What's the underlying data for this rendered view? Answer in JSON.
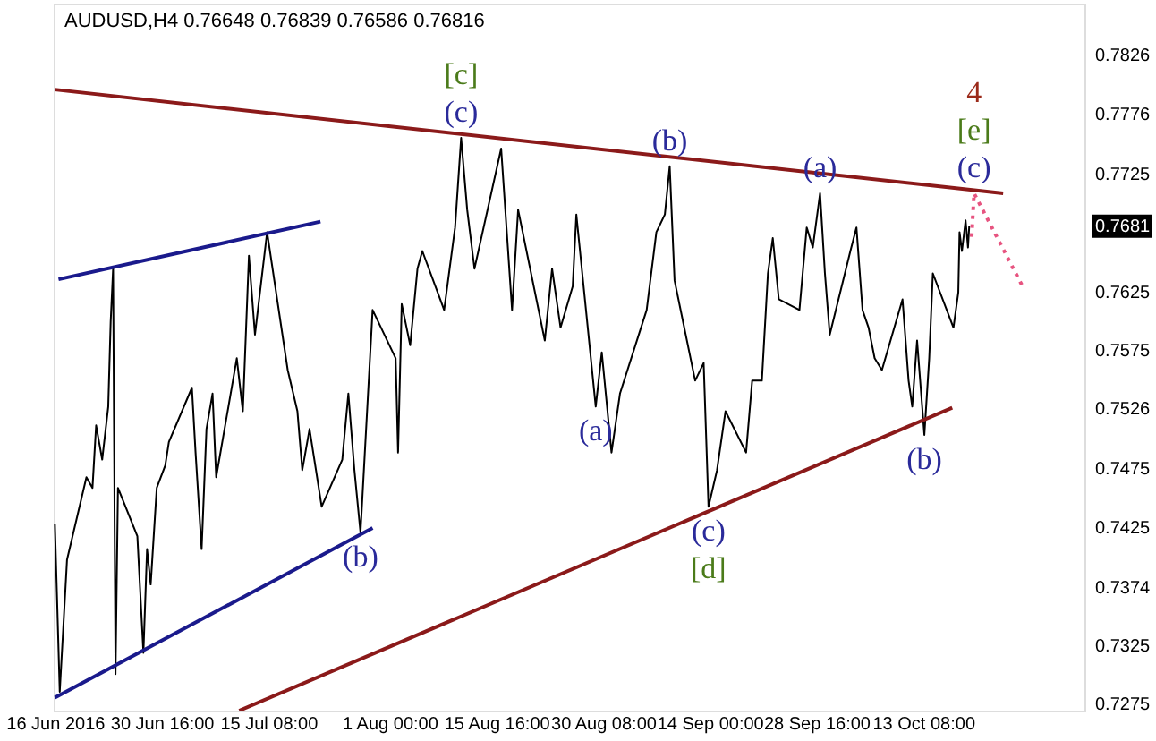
{
  "chart_data": {
    "type": "line",
    "title": "AUDUSD,H4  0.76648 0.76839 0.76586 0.76816",
    "xlim": [
      "2016-06-15T20:00",
      "2016-11-04T12:00"
    ],
    "ylim": [
      0.727,
      0.787
    ],
    "xticks": [
      {
        "value": "2016-06-16",
        "label": "16 Jun 2016"
      },
      {
        "value": "2016-06-30T16:00",
        "label": "30 Jun 16:00"
      },
      {
        "value": "2016-07-15T08:00",
        "label": "15 Jul 08:00"
      },
      {
        "value": "2016-08-01",
        "label": "1 Aug 00:00"
      },
      {
        "value": "2016-08-15T16:00",
        "label": "15 Aug 16:00"
      },
      {
        "value": "2016-08-30T08:00",
        "label": "30 Aug 08:00"
      },
      {
        "value": "2016-09-14",
        "label": "14 Sep 00:00"
      },
      {
        "value": "2016-09-28T16:00",
        "label": "28 Sep 16:00"
      },
      {
        "value": "2016-10-13T08:00",
        "label": "13 Oct 08:00"
      }
    ],
    "yticks": [
      0.7275,
      0.7325,
      0.7374,
      0.7425,
      0.7475,
      0.7526,
      0.7575,
      0.7625,
      0.7725,
      0.7776,
      0.7826
    ],
    "grid": false,
    "series": [
      {
        "color": "#000000",
        "x": [
          "2016-06-16T00:00",
          "2016-06-16T16:00",
          "2016-06-17T16:00",
          "2016-06-20T08:00",
          "2016-06-21T04:00",
          "2016-06-21T16:00",
          "2016-06-22T12:00",
          "2016-06-23T08:00",
          "2016-06-23T16:00",
          "2016-06-24T00:00",
          "2016-06-24T08:00",
          "2016-06-24T16:00",
          "2016-06-27T08:00",
          "2016-06-28T04:00",
          "2016-06-28T16:00",
          "2016-06-29T04:00",
          "2016-06-30T00:00",
          "2016-07-01T04:00",
          "2016-07-01T16:00",
          "2016-07-04T20:00",
          "2016-07-05T08:00",
          "2016-07-06T04:00",
          "2016-07-06T20:00",
          "2016-07-07T16:00",
          "2016-07-08T04:00",
          "2016-07-11T00:00",
          "2016-07-11T20:00",
          "2016-07-12T16:00",
          "2016-07-13T12:00",
          "2016-07-14T16:00",
          "2016-07-15T04:00",
          "2016-07-18T00:00",
          "2016-07-19T08:00",
          "2016-07-20T00:00",
          "2016-07-21T00:00",
          "2016-07-22T16:00",
          "2016-07-25T12:00",
          "2016-07-26T08:00",
          "2016-07-27T04:00",
          "2016-07-28T00:00",
          "2016-07-29T16:00",
          "2016-08-01T20:00",
          "2016-08-02T04:00",
          "2016-08-02T16:00",
          "2016-08-03T20:00",
          "2016-08-04T20:00",
          "2016-08-05T12:00",
          "2016-08-08T12:00",
          "2016-08-10T00:00",
          "2016-08-10T20:00",
          "2016-08-11T16:00",
          "2016-08-12T16:00",
          "2016-08-16T08:00",
          "2016-08-17T20:00",
          "2016-08-18T16:00",
          "2016-08-22T08:00",
          "2016-08-23T08:00",
          "2016-08-24T12:00",
          "2016-08-26T04:00",
          "2016-08-26T16:00",
          "2016-08-29T08:00",
          "2016-08-30T04:00",
          "2016-08-31T12:00",
          "2016-09-01T16:00",
          "2016-09-05T08:00",
          "2016-09-06T16:00",
          "2016-09-07T20:00",
          "2016-09-08T12:00",
          "2016-09-09T04:00",
          "2016-09-12T00:00",
          "2016-09-13T04:00",
          "2016-09-13T20:00",
          "2016-09-15T00:00",
          "2016-09-16T04:00",
          "2016-09-19T00:00",
          "2016-09-19T20:00",
          "2016-09-21T04:00",
          "2016-09-22T00:00",
          "2016-09-22T16:00",
          "2016-09-23T12:00",
          "2016-09-26T08:00",
          "2016-09-27T08:00",
          "2016-09-28T04:00",
          "2016-09-29T04:00",
          "2016-09-29T20:00",
          "2016-09-30T12:00",
          "2016-10-03T08:00",
          "2016-10-04T04:00",
          "2016-10-05T00:00",
          "2016-10-05T20:00",
          "2016-10-06T16:00",
          "2016-10-07T16:00",
          "2016-10-10T12:00",
          "2016-10-11T08:00",
          "2016-10-11T20:00",
          "2016-10-12T12:00",
          "2016-10-13T12:00",
          "2016-10-14T04:00",
          "2016-10-14T16:00",
          "2016-10-17T12:00",
          "2016-10-18T04:00",
          "2016-10-18T08:00",
          "2016-10-18T16:00",
          "2016-10-19T04:00",
          "2016-10-19T12:00",
          "2016-10-19T16:00"
        ],
        "values": [
          0.7428,
          0.7286,
          0.7398,
          0.7468,
          0.7459,
          0.7512,
          0.7483,
          0.7528,
          0.76,
          0.7645,
          0.7301,
          0.7459,
          0.7418,
          0.7319,
          0.7407,
          0.7377,
          0.7459,
          0.7478,
          0.7498,
          0.7544,
          0.7489,
          0.7407,
          0.7509,
          0.7539,
          0.7468,
          0.7569,
          0.7524,
          0.7656,
          0.7589,
          0.765,
          0.7676,
          0.7559,
          0.7524,
          0.7474,
          0.7509,
          0.7443,
          0.7483,
          0.7539,
          0.7474,
          0.7421,
          0.761,
          0.7569,
          0.7489,
          0.7615,
          0.758,
          0.7645,
          0.766,
          0.761,
          0.768,
          0.7756,
          0.7695,
          0.7645,
          0.7747,
          0.761,
          0.7695,
          0.7584,
          0.7645,
          0.7595,
          0.763,
          0.7691,
          0.7528,
          0.7574,
          0.7489,
          0.7539,
          0.761,
          0.7676,
          0.7691,
          0.7732,
          0.7635,
          0.755,
          0.7565,
          0.7443,
          0.7474,
          0.7524,
          0.7489,
          0.755,
          0.755,
          0.7641,
          0.7671,
          0.7619,
          0.761,
          0.768,
          0.7663,
          0.7709,
          0.7641,
          0.7589,
          0.766,
          0.768,
          0.761,
          0.7595,
          0.7569,
          0.7559,
          0.7619,
          0.755,
          0.7528,
          0.7584,
          0.7504,
          0.7569,
          0.7641,
          0.7595,
          0.7625,
          0.7676,
          0.766,
          0.7686,
          0.7663,
          0.7681
        ]
      },
      {
        "color": "#8b1a1a",
        "x": [
          "2016-06-16T00:00",
          "2016-10-24T08:00"
        ],
        "values": [
          0.7797,
          0.7709
        ]
      },
      {
        "color": "#8b1a1a",
        "x": [
          "2016-07-11T08:00",
          "2016-10-17T08:00"
        ],
        "values": [
          0.727,
          0.7527
        ]
      },
      {
        "color": "#1a1a8c",
        "x": [
          "2016-06-16T12:00",
          "2016-07-22T12:00"
        ],
        "values": [
          0.7636,
          0.7685
        ]
      },
      {
        "color": "#1a1a8c",
        "x": [
          "2016-06-16T00:00",
          "2016-07-29T16:00"
        ],
        "values": [
          0.7281,
          0.7425
        ]
      },
      {
        "color": "#e75480",
        "line_style": "dotted",
        "x": [
          "2016-10-20T00:00",
          "2016-10-20T08:00",
          "2016-10-27T00:00"
        ],
        "values": [
          0.7672,
          0.7709,
          0.763
        ]
      }
    ],
    "annotations": [
      "0.7681",
      {
        "text": "[c]",
        "x": "2016-08-10T20:00",
        "y": 0.7756
      },
      {
        "text": "(c)",
        "x": "2016-08-10T20:00",
        "y": 0.7756
      },
      {
        "text": "(b)",
        "x": "2016-09-08T12:00",
        "y": 0.7732
      },
      {
        "text": "(a)",
        "x": "2016-09-29T04:00",
        "y": 0.7709
      },
      {
        "text": "4",
        "x": "2016-10-20T08:00",
        "y": 0.7709
      },
      {
        "text": "[e]",
        "x": "2016-10-20T08:00",
        "y": 0.7709
      },
      {
        "text": "(c)",
        "x": "2016-10-20T08:00",
        "y": 0.7709
      },
      {
        "text": "(b)",
        "x": "2016-07-28T00:00",
        "y": 0.7421
      },
      {
        "text": "(a)",
        "x": "2016-08-29T08:00",
        "y": 0.7528
      },
      {
        "text": "(c)",
        "x": "2016-09-13T20:00",
        "y": 0.7443
      },
      {
        "text": "[d]",
        "x": "2016-09-13T20:00",
        "y": 0.7443
      },
      {
        "text": "(b)",
        "x": "2016-10-13T12:00",
        "y": 0.7504
      }
    ]
  }
}
